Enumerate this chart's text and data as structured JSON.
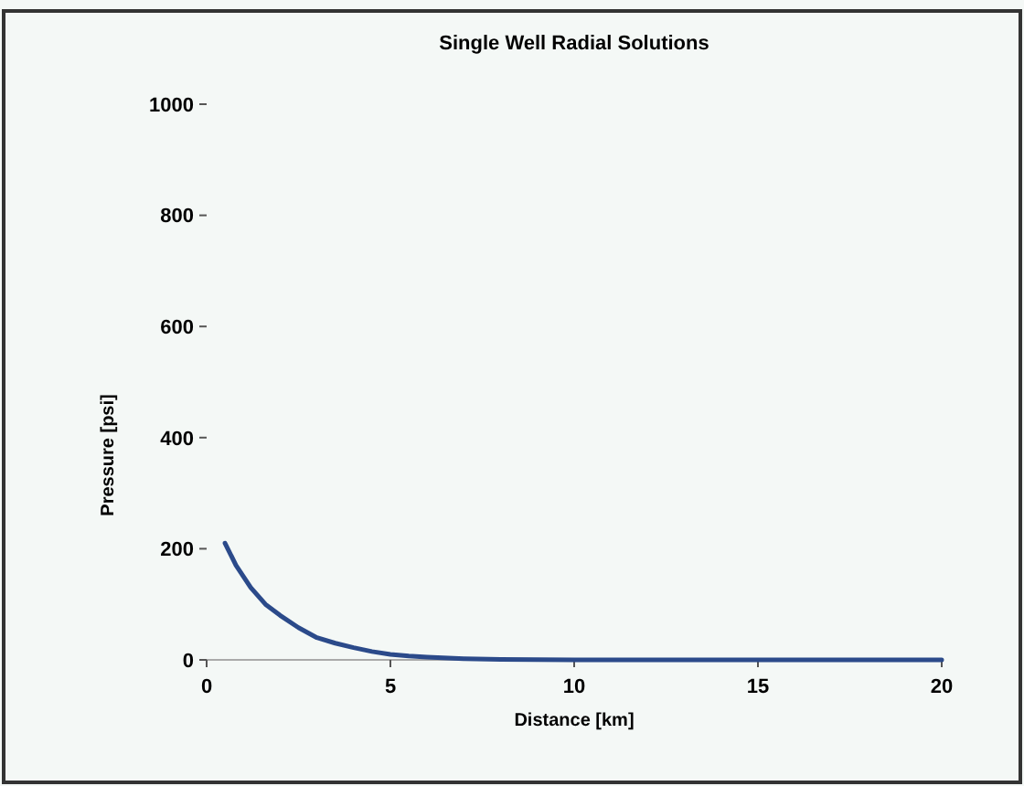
{
  "chart_data": {
    "type": "line",
    "title": "Single Well Radial Solutions",
    "xlabel": "Distance [km]",
    "ylabel": "Pressure [psi]",
    "xlim": [
      0,
      20
    ],
    "xticks": [
      0,
      5,
      10,
      15,
      20
    ],
    "ylim": [
      0,
      1000
    ],
    "yticks": [
      0,
      200,
      400,
      600,
      800,
      1000
    ],
    "grid": false,
    "marker": "none",
    "line_style": "solid",
    "series": [
      {
        "color": "#2b4a8a",
        "x": [
          0.5,
          0.8,
          1.2,
          1.6,
          2,
          2.5,
          3,
          3.5,
          4,
          4.5,
          5,
          5.5,
          6,
          7,
          8,
          10,
          12,
          14,
          16,
          18,
          20
        ],
        "values": [
          210,
          170,
          130,
          100,
          80,
          58,
          40,
          30,
          22,
          15,
          10,
          7,
          5,
          2,
          1,
          0,
          0,
          0,
          0,
          0,
          0
        ]
      }
    ]
  }
}
